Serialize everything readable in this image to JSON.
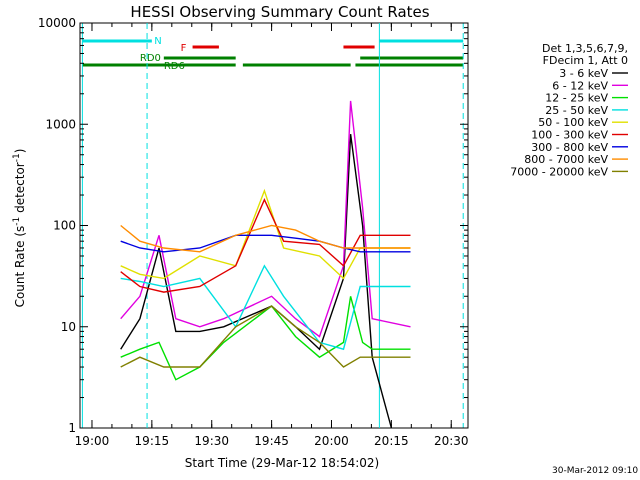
{
  "chart_data": {
    "type": "line",
    "title": "HESSI Observing Summary Count Rates",
    "xlabel": "Start Time (29-Mar-12 18:54:02)",
    "ylabel_main": "Count Rate (s",
    "ylabel_sup1": "-1",
    "ylabel_mid": " detector",
    "ylabel_sup2": "-1",
    "ylabel_end": ")",
    "ylog": true,
    "ylim": [
      1,
      10000
    ],
    "xlim_minutes": [
      18.95,
      20.57
    ],
    "yticks": [
      1,
      10,
      100,
      1000,
      10000
    ],
    "ytick_labels": [
      "1",
      "10",
      "100",
      "1000",
      "10000"
    ],
    "xticks": [
      19.0,
      19.25,
      19.5,
      19.75,
      20.0,
      20.25,
      20.5
    ],
    "xtick_labels": [
      "19:00",
      "19:15",
      "19:30",
      "19:45",
      "20:00",
      "20:15",
      "20:30"
    ],
    "legend_header": [
      "Det 1,3,5,6,7,9,",
      "FDecim 1, Att 0"
    ],
    "series": [
      {
        "name": "3 - 6 keV",
        "color": "#000000",
        "values": [
          [
            19.12,
            6
          ],
          [
            19.2,
            12
          ],
          [
            19.28,
            60
          ],
          [
            19.35,
            9
          ],
          [
            19.45,
            9
          ],
          [
            19.55,
            10
          ],
          [
            19.75,
            16
          ],
          [
            19.85,
            10
          ],
          [
            19.95,
            6
          ],
          [
            20.05,
            30
          ],
          [
            20.08,
            800
          ],
          [
            20.13,
            100
          ],
          [
            20.17,
            5
          ],
          [
            20.25,
            1
          ]
        ]
      },
      {
        "name": "6 - 12 keV",
        "color": "#e000e0",
        "values": [
          [
            19.12,
            12
          ],
          [
            19.2,
            20
          ],
          [
            19.28,
            80
          ],
          [
            19.35,
            12
          ],
          [
            19.45,
            10
          ],
          [
            19.55,
            12
          ],
          [
            19.75,
            20
          ],
          [
            19.85,
            12
          ],
          [
            19.95,
            8
          ],
          [
            20.05,
            40
          ],
          [
            20.08,
            1700
          ],
          [
            20.13,
            150
          ],
          [
            20.17,
            12
          ],
          [
            20.33,
            10
          ]
        ]
      },
      {
        "name": "12 - 25 keV",
        "color": "#00e000",
        "values": [
          [
            19.12,
            5
          ],
          [
            19.2,
            6
          ],
          [
            19.28,
            7
          ],
          [
            19.35,
            3
          ],
          [
            19.45,
            4
          ],
          [
            19.55,
            7
          ],
          [
            19.75,
            16
          ],
          [
            19.85,
            8
          ],
          [
            19.95,
            5
          ],
          [
            20.05,
            7
          ],
          [
            20.08,
            20
          ],
          [
            20.13,
            7
          ],
          [
            20.17,
            6
          ],
          [
            20.33,
            6
          ]
        ]
      },
      {
        "name": "25 - 50 keV",
        "color": "#00e0e0",
        "values": [
          [
            19.12,
            30
          ],
          [
            19.2,
            28
          ],
          [
            19.3,
            25
          ],
          [
            19.45,
            30
          ],
          [
            19.6,
            10
          ],
          [
            19.72,
            40
          ],
          [
            19.8,
            20
          ],
          [
            19.95,
            7
          ],
          [
            20.05,
            6
          ],
          [
            20.12,
            25
          ],
          [
            20.33,
            25
          ]
        ]
      },
      {
        "name": "50 - 100 keV",
        "color": "#e0e000",
        "values": [
          [
            19.12,
            40
          ],
          [
            19.2,
            33
          ],
          [
            19.3,
            30
          ],
          [
            19.45,
            50
          ],
          [
            19.6,
            40
          ],
          [
            19.72,
            220
          ],
          [
            19.8,
            60
          ],
          [
            19.95,
            50
          ],
          [
            20.05,
            30
          ],
          [
            20.12,
            60
          ],
          [
            20.33,
            60
          ]
        ]
      },
      {
        "name": "100 - 300 keV",
        "color": "#e00000",
        "values": [
          [
            19.12,
            35
          ],
          [
            19.2,
            25
          ],
          [
            19.3,
            22
          ],
          [
            19.45,
            25
          ],
          [
            19.6,
            40
          ],
          [
            19.72,
            180
          ],
          [
            19.8,
            70
          ],
          [
            19.95,
            65
          ],
          [
            20.05,
            40
          ],
          [
            20.12,
            80
          ],
          [
            20.33,
            80
          ]
        ]
      },
      {
        "name": "300 - 800 keV",
        "color": "#0000e0",
        "values": [
          [
            19.12,
            70
          ],
          [
            19.2,
            60
          ],
          [
            19.3,
            55
          ],
          [
            19.45,
            60
          ],
          [
            19.6,
            80
          ],
          [
            19.75,
            80
          ],
          [
            19.85,
            75
          ],
          [
            19.95,
            70
          ],
          [
            20.05,
            60
          ],
          [
            20.12,
            55
          ],
          [
            20.33,
            55
          ]
        ]
      },
      {
        "name": "800 - 7000 keV",
        "color": "#ff8c00",
        "values": [
          [
            19.12,
            100
          ],
          [
            19.2,
            70
          ],
          [
            19.3,
            60
          ],
          [
            19.45,
            55
          ],
          [
            19.6,
            80
          ],
          [
            19.75,
            100
          ],
          [
            19.85,
            90
          ],
          [
            19.95,
            70
          ],
          [
            20.05,
            60
          ],
          [
            20.12,
            60
          ],
          [
            20.33,
            60
          ]
        ]
      },
      {
        "name": "7000 - 20000 keV",
        "color": "#808000",
        "values": [
          [
            19.12,
            4
          ],
          [
            19.2,
            5
          ],
          [
            19.3,
            4
          ],
          [
            19.45,
            4
          ],
          [
            19.6,
            10
          ],
          [
            19.75,
            16
          ],
          [
            19.85,
            10
          ],
          [
            19.95,
            7
          ],
          [
            20.05,
            4
          ],
          [
            20.12,
            5
          ],
          [
            20.33,
            5
          ]
        ]
      }
    ],
    "annotations": {
      "n_label": "N",
      "f_label": "F",
      "rd0_label": "RD0",
      "rd6_label": "RD6",
      "timestamp": "30-Mar-2012 09:10"
    }
  }
}
